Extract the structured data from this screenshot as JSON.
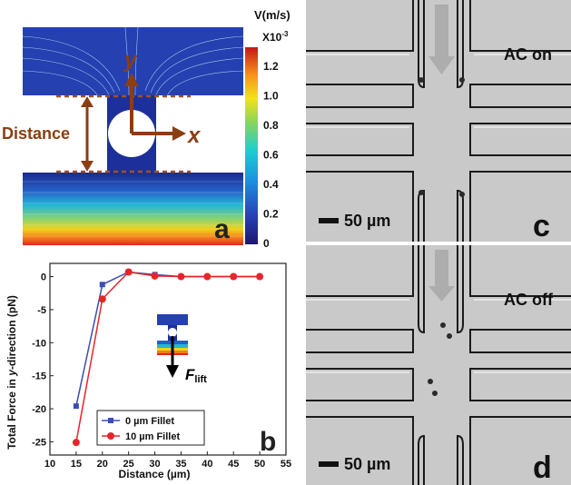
{
  "panel_a": {
    "letter": "a",
    "axis_y": "y",
    "axis_x": "x",
    "distance_label": "Distance",
    "colorbar": {
      "title": "V(m/s)",
      "scale": "X10",
      "scale_exp": "-3",
      "ticks": [
        "1.2",
        "1.0",
        "0.8",
        "0.6",
        "0.4",
        "0.2",
        "0"
      ]
    }
  },
  "panel_b": {
    "letter": "b",
    "inset_force": "F",
    "inset_sub": "lift"
  },
  "panel_c": {
    "letter": "c",
    "status": "AC on",
    "scalebar": "50 µm"
  },
  "panel_d": {
    "letter": "d",
    "status": "AC off",
    "scalebar": "50 µm"
  },
  "chart_data": {
    "type": "line",
    "xlabel": "Distance (µm)",
    "ylabel_pre": "Total Force in ",
    "ylabel_em": "y",
    "ylabel_post": "-direction (pN)",
    "xlim": [
      10,
      55
    ],
    "ylim": [
      -27,
      2
    ],
    "xticks": [
      10,
      15,
      20,
      25,
      30,
      35,
      40,
      45,
      50,
      55
    ],
    "yticks": [
      0,
      -5,
      -10,
      -15,
      -20,
      -25
    ],
    "legend_position": "bottom-right",
    "series": [
      {
        "name": "0 µm Fillet",
        "color": "#3b4fb0",
        "marker": "square",
        "x": [
          15,
          20,
          25,
          30,
          35,
          40,
          45,
          50
        ],
        "y": [
          -19.6,
          -1.2,
          0.7,
          0.3,
          0.0,
          0.0,
          0.0,
          0.0
        ]
      },
      {
        "name": "10 µm Fillet",
        "color": "#e8242b",
        "marker": "circle",
        "x": [
          15,
          20,
          25,
          30,
          35,
          40,
          45,
          50
        ],
        "y": [
          -25.1,
          -3.4,
          0.7,
          0.1,
          0.0,
          0.0,
          0.0,
          0.0
        ]
      }
    ]
  }
}
